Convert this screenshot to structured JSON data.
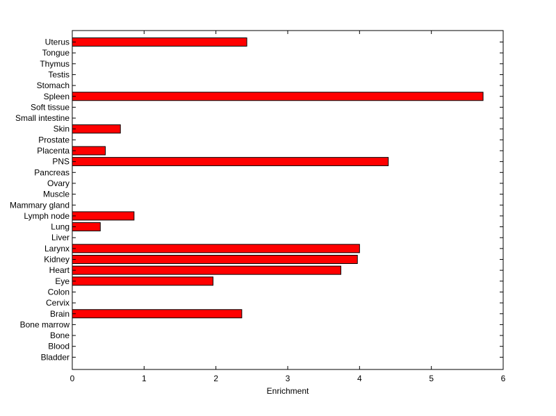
{
  "chart_data": {
    "type": "bar",
    "orientation": "horizontal",
    "title": "",
    "xlabel": "Enrichment",
    "ylabel": "",
    "xlim": [
      0,
      6
    ],
    "xticks": [
      0,
      1,
      2,
      3,
      4,
      5,
      6
    ],
    "grid": false,
    "legend": "none",
    "bar_color": "#ff0000",
    "categories": [
      "Uterus",
      "Tongue",
      "Thymus",
      "Testis",
      "Stomach",
      "Spleen",
      "Soft tissue",
      "Small intestine",
      "Skin",
      "Prostate",
      "Placenta",
      "PNS",
      "Pancreas",
      "Ovary",
      "Muscle",
      "Mammary gland",
      "Lymph node",
      "Lung",
      "Liver",
      "Larynx",
      "Kidney",
      "Heart",
      "Eye",
      "Colon",
      "Cervix",
      "Brain",
      "Bone marrow",
      "Bone",
      "Blood",
      "Bladder"
    ],
    "values": [
      2.43,
      0,
      0,
      0,
      0,
      5.72,
      0,
      0,
      0.67,
      0,
      0.46,
      4.4,
      0,
      0,
      0,
      0,
      0.86,
      0.39,
      0,
      4.0,
      3.97,
      3.74,
      1.96,
      0,
      0,
      2.36,
      0,
      0,
      0,
      0
    ]
  }
}
